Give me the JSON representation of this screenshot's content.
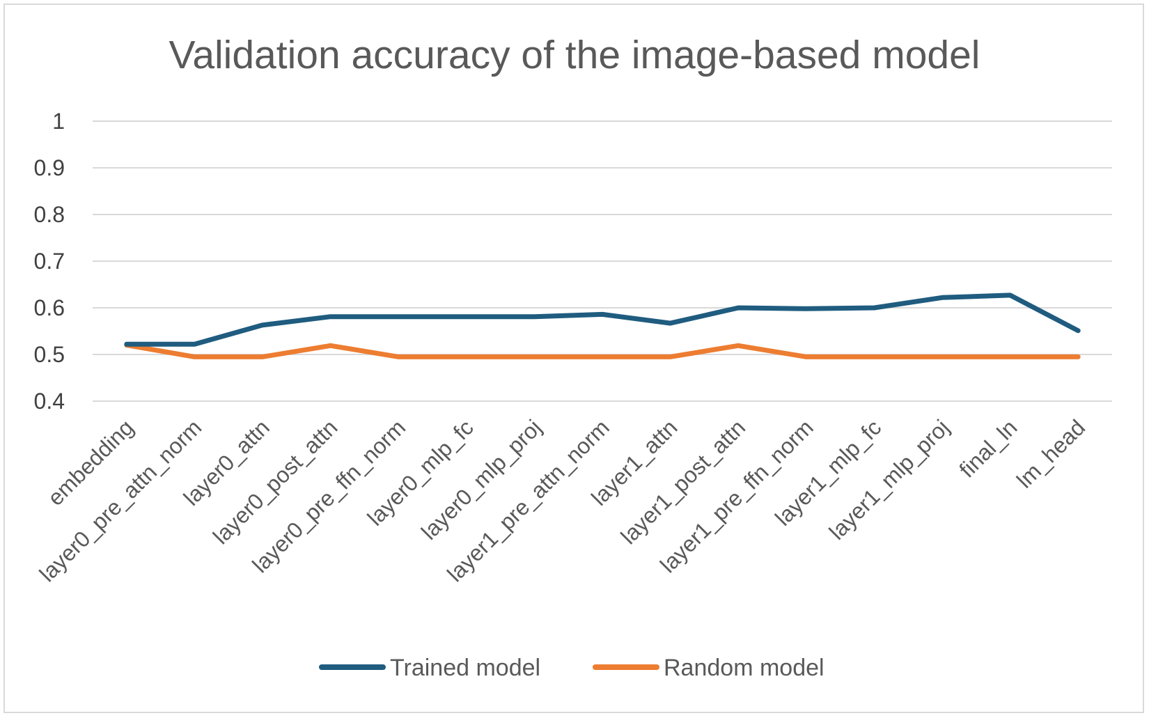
{
  "chart_data": {
    "type": "line",
    "title": "Validation accuracy of the image-based model",
    "xlabel": "",
    "ylabel": "",
    "ylim": [
      0.4,
      1
    ],
    "yticks": [
      "0.4",
      "0.5",
      "0.6",
      "0.7",
      "0.8",
      "0.9",
      "1"
    ],
    "grid": true,
    "legend_position": "bottom",
    "categories": [
      "embedding",
      "layer0_pre_attn_norm",
      "layer0_attn",
      "layer0_post_attn",
      "layer0_pre_ffn_norm",
      "layer0_mlp_fc",
      "layer0_mlp_proj",
      "layer1_pre_attn_norm",
      "layer1_attn",
      "layer1_post_attn",
      "layer1_pre_ffn_norm",
      "layer1_mlp_fc",
      "layer1_mlp_proj",
      "final_ln",
      "lm_head"
    ],
    "series": [
      {
        "name": "Trained model",
        "color": "#1f5c7f",
        "values": [
          0.522,
          0.522,
          0.563,
          0.581,
          0.581,
          0.581,
          0.581,
          0.586,
          0.567,
          0.6,
          0.598,
          0.6,
          0.622,
          0.627,
          0.551
        ]
      },
      {
        "name": "Random model",
        "color": "#ed7d31",
        "values": [
          0.52,
          0.495,
          0.495,
          0.519,
          0.495,
          0.495,
          0.495,
          0.495,
          0.495,
          0.519,
          0.495,
          0.495,
          0.495,
          0.495,
          0.495
        ]
      }
    ]
  }
}
